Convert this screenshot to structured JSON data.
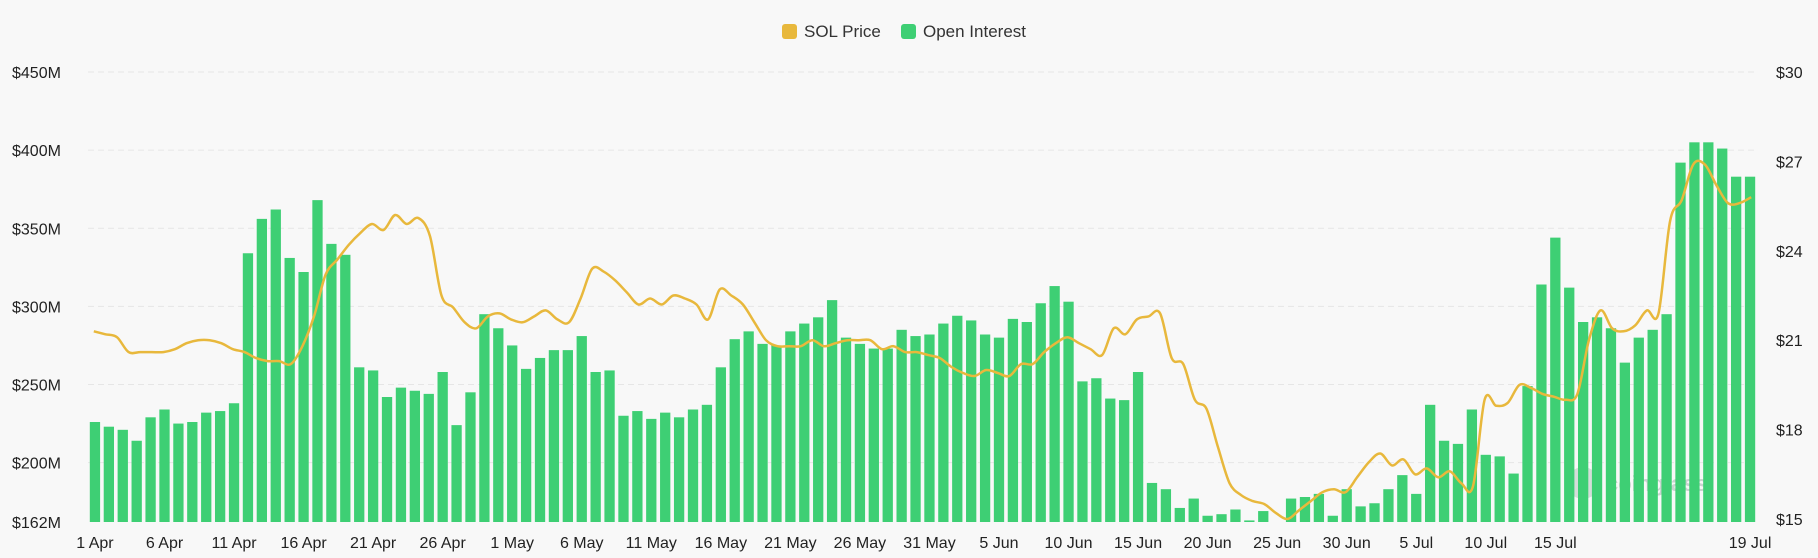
{
  "legend": {
    "price_label": "SOL Price",
    "oi_label": "Open Interest"
  },
  "watermark": {
    "text": "coinglass"
  },
  "colors": {
    "price": "#e8b83c",
    "oi": "#3ecf74",
    "grid": "#e6e6e6",
    "text": "#222222"
  },
  "chart_data": {
    "type": "bar",
    "title": "",
    "legend_position": "top-center",
    "grid": true,
    "x_tick_labels": [
      "1 Apr",
      "6 Apr",
      "11 Apr",
      "16 Apr",
      "21 Apr",
      "26 Apr",
      "1 May",
      "6 May",
      "11 May",
      "16 May",
      "21 May",
      "26 May",
      "31 May",
      "5 Jun",
      "10 Jun",
      "15 Jun",
      "20 Jun",
      "25 Jun",
      "30 Jun",
      "5 Jul",
      "10 Jul",
      "15 Jul",
      "19 Jul"
    ],
    "y_left": {
      "ticks": [
        "$162M",
        "$200M",
        "$250M",
        "$300M",
        "$350M",
        "$400M",
        "$450M"
      ],
      "tick_values": [
        162,
        200,
        250,
        300,
        350,
        400,
        450
      ],
      "range": [
        162,
        450
      ],
      "unit": "M USD"
    },
    "y_right": {
      "ticks": [
        "$15",
        "$18",
        "$21",
        "$24",
        "$27",
        "$30"
      ],
      "tick_values": [
        15,
        18,
        21,
        24,
        27,
        30
      ],
      "range": [
        14.9,
        30
      ]
    },
    "start_date": "1 Apr",
    "end_date": "19 Jul",
    "series": [
      {
        "name": "Open Interest",
        "type": "bar",
        "axis": "left",
        "values": [
          226,
          223,
          221,
          214,
          229,
          234,
          225,
          226,
          232,
          233,
          238,
          334,
          356,
          362,
          331,
          322,
          368,
          340,
          333,
          261,
          259,
          242,
          248,
          246,
          244,
          258,
          224,
          245,
          295,
          286,
          275,
          260,
          267,
          272,
          272,
          281,
          258,
          259,
          230,
          233,
          228,
          232,
          229,
          234,
          237,
          261,
          279,
          284,
          276,
          275,
          284,
          289,
          293,
          304,
          280,
          276,
          273,
          273,
          285,
          281,
          282,
          289,
          294,
          291,
          282,
          280,
          292,
          290,
          302,
          313,
          303,
          252,
          254,
          241,
          240,
          258,
          187,
          183,
          171,
          177,
          166,
          167,
          170,
          163,
          169,
          162,
          177,
          178,
          180,
          166,
          183,
          172,
          174,
          183,
          192,
          180,
          237,
          214,
          212,
          234,
          205,
          204,
          193,
          249,
          314,
          344,
          312,
          290,
          293,
          286,
          264,
          280,
          285,
          295,
          392,
          405,
          405,
          401,
          383,
          383
        ]
      },
      {
        "name": "SOL Price",
        "type": "line",
        "axis": "right",
        "values": [
          21.3,
          21.2,
          21.1,
          20.6,
          20.6,
          20.6,
          20.6,
          20.7,
          20.9,
          21.0,
          21.0,
          20.9,
          20.7,
          20.6,
          20.4,
          20.3,
          20.3,
          20.2,
          20.8,
          21.8,
          23.2,
          23.7,
          24.2,
          24.6,
          24.9,
          24.7,
          25.2,
          24.9,
          25.1,
          24.5,
          22.5,
          22.1,
          21.6,
          21.4,
          21.8,
          21.9,
          21.7,
          21.6,
          21.8,
          22.0,
          21.7,
          21.6,
          22.4,
          23.4,
          23.3,
          23.0,
          22.6,
          22.2,
          22.4,
          22.2,
          22.5,
          22.4,
          22.2,
          21.7,
          22.7,
          22.5,
          22.2,
          21.6,
          21.0,
          20.8,
          20.8,
          20.8,
          21.0,
          20.8,
          20.9,
          21.0,
          21.0,
          21.0,
          20.7,
          20.8,
          20.6,
          20.6,
          20.5,
          20.4,
          20.1,
          19.9,
          19.8,
          20.0,
          19.9,
          19.8,
          20.2,
          20.2,
          20.6,
          20.9,
          21.1,
          20.9,
          20.7,
          20.5,
          21.4,
          21.2,
          21.7,
          21.8,
          21.9,
          20.4,
          20.2,
          19.0,
          18.7,
          17.4,
          16.2,
          15.8,
          15.6,
          15.5,
          15.2,
          15.0,
          15.3,
          15.6,
          15.9,
          16.0,
          15.9,
          16.4,
          16.9,
          17.2,
          16.8,
          17.0,
          16.5,
          16.7,
          16.4,
          16.6,
          16.2,
          16.1,
          19.0,
          18.8,
          18.9,
          19.5,
          19.4,
          19.2,
          19.1,
          19.0,
          19.2,
          21.0,
          22.0,
          21.4,
          21.3,
          21.5,
          22.0,
          21.9,
          25.0,
          25.7,
          26.9,
          26.9,
          26.2,
          25.6,
          25.6,
          25.8
        ]
      }
    ]
  }
}
